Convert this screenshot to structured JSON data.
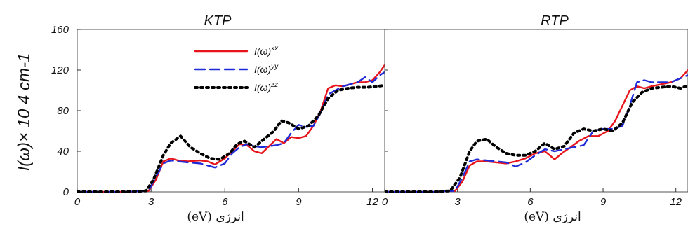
{
  "chart_data": [
    {
      "type": "line",
      "title": "KTP",
      "ylabel": "I(ω)× 10 4 cm-1",
      "xlabel": "انرژی (eV)",
      "xlim": [
        0,
        12.5
      ],
      "ylim": [
        0,
        160
      ],
      "xticks": [
        0,
        3,
        6,
        9,
        12
      ],
      "yticks": [
        0,
        40,
        80,
        120,
        160
      ],
      "legend_position": "top-left",
      "series": [
        {
          "name": "I(ω)xx",
          "color": "#e8141b",
          "dash": "solid",
          "x": [
            0,
            2,
            2.9,
            3.2,
            3.5,
            3.8,
            4.1,
            4.5,
            5,
            5.3,
            5.6,
            6,
            6.3,
            6.6,
            6.9,
            7.2,
            7.5,
            7.8,
            8.1,
            8.4,
            8.7,
            9,
            9.3,
            9.6,
            9.9,
            10.2,
            10.5,
            10.8,
            11.1,
            11.4,
            11.7,
            12,
            12.3,
            12.5
          ],
          "y": [
            0,
            0,
            1,
            12,
            30,
            33,
            31,
            30,
            31,
            30,
            27,
            33,
            40,
            47,
            46,
            40,
            38,
            45,
            52,
            48,
            54,
            53,
            55,
            65,
            80,
            102,
            105,
            104,
            106,
            108,
            108,
            110,
            118,
            125
          ]
        },
        {
          "name": "I(ω)yy",
          "color": "#1f2bd8",
          "dash": "dashed",
          "x": [
            0,
            2,
            2.9,
            3.2,
            3.5,
            3.8,
            4.1,
            4.5,
            5,
            5.3,
            5.6,
            6,
            6.3,
            6.6,
            6.9,
            7.2,
            7.5,
            7.8,
            8.1,
            8.4,
            8.7,
            9,
            9.3,
            9.6,
            9.9,
            10.2,
            10.5,
            10.8,
            11.1,
            11.4,
            11.7,
            12,
            12.3,
            12.5
          ],
          "y": [
            0,
            0,
            1,
            15,
            28,
            31,
            30,
            29,
            28,
            26,
            24,
            28,
            38,
            44,
            47,
            45,
            44,
            45,
            46,
            48,
            58,
            66,
            64,
            65,
            78,
            96,
            100,
            104,
            106,
            108,
            113,
            108,
            115,
            118
          ]
        },
        {
          "name": "I(ω)zz",
          "color": "#000000",
          "dash": "dotted",
          "x": [
            0,
            2,
            2.8,
            3.1,
            3.5,
            3.8,
            4.2,
            4.6,
            5,
            5.4,
            5.8,
            6.2,
            6.5,
            6.8,
            7.2,
            7.6,
            8,
            8.3,
            8.6,
            9,
            9.4,
            9.8,
            10.2,
            10.6,
            11,
            11.4,
            11.8,
            12.2,
            12.5
          ],
          "y": [
            0,
            0,
            1,
            12,
            36,
            48,
            55,
            44,
            38,
            33,
            32,
            38,
            47,
            50,
            44,
            52,
            60,
            70,
            68,
            62,
            65,
            75,
            92,
            100,
            102,
            103,
            103,
            104,
            105
          ]
        }
      ]
    },
    {
      "type": "line",
      "title": "RTP",
      "ylabel": "",
      "xlabel": "انرژی (eV)",
      "xlim": [
        0,
        12.5
      ],
      "ylim": [
        0,
        160
      ],
      "xticks": [
        0,
        3,
        6,
        9,
        12
      ],
      "yticks": [
        0,
        40,
        80,
        120,
        160
      ],
      "series": [
        {
          "name": "I(ω)xx",
          "color": "#e8141b",
          "dash": "solid",
          "x": [
            0,
            2,
            2.9,
            3.2,
            3.5,
            3.8,
            4.2,
            4.6,
            5,
            5.4,
            5.8,
            6.2,
            6.6,
            7,
            7.3,
            7.6,
            8,
            8.4,
            8.8,
            9.2,
            9.5,
            9.8,
            10.1,
            10.4,
            10.7,
            11,
            11.4,
            11.8,
            12.2,
            12.5
          ],
          "y": [
            0,
            0,
            1,
            10,
            26,
            30,
            30,
            29,
            28,
            30,
            33,
            38,
            40,
            32,
            38,
            43,
            50,
            55,
            55,
            60,
            70,
            85,
            100,
            104,
            102,
            104,
            106,
            108,
            112,
            120
          ]
        },
        {
          "name": "I(ω)yy",
          "color": "#1f2bd8",
          "dash": "dashed",
          "x": [
            0,
            2,
            2.9,
            3.2,
            3.5,
            3.8,
            4.2,
            4.6,
            5,
            5.4,
            5.8,
            6.2,
            6.6,
            7,
            7.4,
            7.8,
            8.2,
            8.6,
            9,
            9.4,
            9.8,
            10.1,
            10.4,
            10.7,
            11,
            11.4,
            11.8,
            12.2,
            12.5
          ],
          "y": [
            0,
            0,
            1,
            14,
            30,
            32,
            31,
            30,
            29,
            25,
            29,
            36,
            42,
            40,
            42,
            44,
            46,
            60,
            62,
            62,
            65,
            85,
            108,
            110,
            108,
            108,
            108,
            112,
            115
          ]
        },
        {
          "name": "I(ω)zz",
          "color": "#000000",
          "dash": "dotted",
          "x": [
            0,
            2,
            2.7,
            3.1,
            3.5,
            3.8,
            4.2,
            4.6,
            5,
            5.4,
            5.8,
            6.2,
            6.6,
            7,
            7.4,
            7.8,
            8.2,
            8.6,
            9,
            9.4,
            9.8,
            10.2,
            10.6,
            11,
            11.4,
            11.8,
            12.2,
            12.5
          ],
          "y": [
            0,
            0,
            1,
            14,
            40,
            50,
            52,
            44,
            38,
            36,
            36,
            40,
            48,
            42,
            45,
            58,
            62,
            60,
            62,
            60,
            68,
            88,
            98,
            102,
            103,
            104,
            102,
            105
          ]
        }
      ]
    }
  ]
}
